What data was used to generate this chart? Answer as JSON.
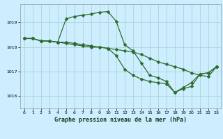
{
  "title": "Graphe pression niveau de la mer (hPa)",
  "bg_color": "#cceeff",
  "grid_color": "#aacccc",
  "line_color": "#2d6b2d",
  "marker": "D",
  "markersize": 2.5,
  "linewidth": 0.9,
  "xlim": [
    -0.5,
    23.5
  ],
  "ylim": [
    1015.5,
    1019.75
  ],
  "yticks": [
    1016,
    1017,
    1018,
    1019
  ],
  "xticks": [
    0,
    1,
    2,
    3,
    4,
    5,
    6,
    7,
    8,
    9,
    10,
    11,
    12,
    13,
    14,
    15,
    16,
    17,
    18,
    19,
    20,
    21,
    22,
    23
  ],
  "series1_x": [
    0,
    1,
    2,
    3,
    4,
    5,
    6,
    7,
    8,
    9,
    10,
    11,
    12,
    13,
    14,
    15,
    16,
    17,
    18,
    19,
    20,
    21,
    22,
    23
  ],
  "series1_y": [
    1018.35,
    1018.35,
    1018.25,
    1018.25,
    1018.2,
    1018.15,
    1018.1,
    1018.05,
    1018.0,
    1018.0,
    1017.95,
    1017.9,
    1017.85,
    1017.8,
    1017.7,
    1017.55,
    1017.4,
    1017.3,
    1017.2,
    1017.1,
    1016.95,
    1016.85,
    1016.8,
    1017.2
  ],
  "series2_x": [
    0,
    1,
    2,
    3,
    4,
    5,
    6,
    7,
    8,
    9,
    10,
    11,
    12,
    13,
    14,
    15,
    16,
    17,
    18,
    19,
    20,
    21,
    22,
    23
  ],
  "series2_y": [
    1018.35,
    1018.35,
    1018.25,
    1018.25,
    1018.2,
    1019.15,
    1019.25,
    1019.3,
    1019.35,
    1019.42,
    1019.45,
    1019.05,
    1018.1,
    1017.85,
    1017.35,
    1016.85,
    1016.75,
    1016.6,
    1016.15,
    1016.3,
    1016.4,
    1016.9,
    1016.95,
    1017.2
  ],
  "series3_x": [
    0,
    1,
    2,
    3,
    4,
    5,
    6,
    7,
    8,
    9,
    10,
    11,
    12,
    13,
    14,
    15,
    16,
    17,
    18,
    19,
    20,
    21,
    22,
    23
  ],
  "series3_y": [
    1018.35,
    1018.35,
    1018.25,
    1018.25,
    1018.2,
    1018.2,
    1018.15,
    1018.1,
    1018.05,
    1018.0,
    1017.95,
    1017.65,
    1017.1,
    1016.85,
    1016.7,
    1016.6,
    1016.55,
    1016.5,
    1016.15,
    1016.35,
    1016.55,
    1016.9,
    1016.95,
    1017.2
  ],
  "label_fontsize": 5.0,
  "tick_fontsize": 4.5,
  "xlabel_fontsize": 6.0
}
